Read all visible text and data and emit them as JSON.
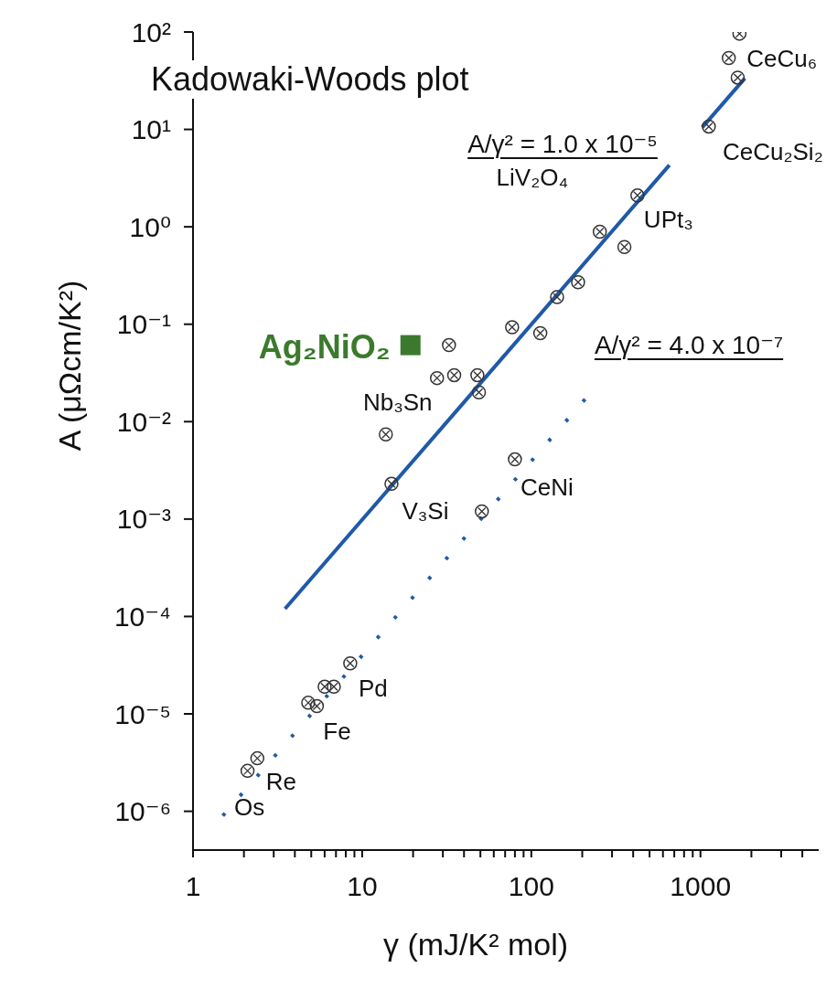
{
  "chart_data": {
    "type": "scatter",
    "title": "Kadowaki-Woods plot",
    "xlabel": "γ  (mJ/K² mol)",
    "ylabel": "A  (μΩcm/K²)",
    "log": "xy",
    "xlim": [
      1,
      5000
    ],
    "ylim": [
      4e-07,
      100
    ],
    "xticks": [
      1,
      {
        "value": 2,
        "label": null
      },
      {
        "value": 3,
        "label": null
      },
      {
        "value": 4,
        "label": null
      },
      {
        "value": 5,
        "label": null
      },
      {
        "value": 6,
        "label": null
      },
      {
        "value": 7,
        "label": null
      },
      {
        "value": 8,
        "label": null
      },
      {
        "value": 9,
        "label": null
      },
      10,
      {
        "value": 20,
        "label": null
      },
      {
        "value": 30,
        "label": null
      },
      {
        "value": 40,
        "label": null
      },
      {
        "value": 50,
        "label": null
      },
      {
        "value": 60,
        "label": null
      },
      {
        "value": 70,
        "label": null
      },
      {
        "value": 80,
        "label": null
      },
      {
        "value": 90,
        "label": null
      },
      100,
      {
        "value": 200,
        "label": null
      },
      {
        "value": 300,
        "label": null
      },
      {
        "value": 400,
        "label": null
      },
      {
        "value": 500,
        "label": null
      },
      {
        "value": 600,
        "label": null
      },
      {
        "value": 700,
        "label": null
      },
      {
        "value": 800,
        "label": null
      },
      {
        "value": 900,
        "label": null
      },
      1000,
      {
        "value": 2000,
        "label": null
      },
      {
        "value": 3000,
        "label": null
      },
      {
        "value": 4000,
        "label": null
      }
    ],
    "yticks": [
      {
        "value": 1e-06,
        "label": "10⁻⁶"
      },
      {
        "value": 1e-05,
        "label": "10⁻⁵"
      },
      {
        "value": 0.0001,
        "label": "10⁻⁴"
      },
      {
        "value": 0.001,
        "label": "10⁻³"
      },
      {
        "value": 0.01,
        "label": "10⁻²"
      },
      {
        "value": 0.1,
        "label": "10⁻¹"
      },
      {
        "value": 1,
        "label": "10⁰"
      },
      {
        "value": 10,
        "label": "10¹"
      },
      {
        "value": 100,
        "label": "10²"
      }
    ],
    "series": [
      {
        "color": "#333333",
        "marker": "circle",
        "x": [
          1470,
          1700,
          1660,
          1120,
          424,
          254,
          355,
          189,
          142,
          77,
          113,
          32.6,
          27.7,
          35,
          48,
          49,
          13.8,
          14.9,
          80,
          51,
          8.5,
          6.0,
          6.8,
          4.8,
          5.4,
          2.4,
          2.1
        ],
        "values": [
          54,
          96,
          34,
          10.7,
          2.1,
          0.89,
          0.62,
          0.27,
          0.19,
          0.093,
          0.081,
          0.061,
          0.028,
          0.03,
          0.03,
          0.02,
          0.0074,
          0.0023,
          0.0041,
          0.0012,
          3.3e-05,
          1.9e-05,
          1.9e-05,
          1.3e-05,
          1.2e-05,
          3.5e-06,
          2.6e-06
        ]
      },
      {
        "name": "Ag₂NiO₂",
        "color": "#3b7a2c",
        "marker": "square",
        "x": [
          19.3
        ],
        "values": [
          0.061
        ]
      },
      {
        "type": "line",
        "color": "#1f5aa8",
        "line_style": "solid",
        "marker": "none",
        "x": [
          3.5,
          655,
          820,
          1025,
          1830
        ],
        "values": [
          0.00012,
          4.3,
          null,
          10.5,
          33.5
        ]
      },
      {
        "type": "line",
        "color": "#1f5aa8",
        "line_style": "dotted",
        "marker": "none",
        "x": [
          1.5,
          208
        ],
        "values": [
          9e-07,
          0.017
        ]
      }
    ],
    "annotations": [
      {
        "text": "CeCu₆",
        "x": 1470,
        "y": 54
      },
      {
        "text": "CeCu₂Si₂",
        "x": 1120,
        "y": 10.7
      },
      {
        "text": "LiV₂O₄",
        "x": 424,
        "y": 2.1
      },
      {
        "text": "UPt₃",
        "x": 424,
        "y": 2.1
      },
      {
        "text": "Nb₃Sn",
        "x": 13.8,
        "y": 0.0074
      },
      {
        "text": "V₃Si",
        "x": 14.9,
        "y": 0.0023
      },
      {
        "text": "CeNi",
        "x": 80,
        "y": 0.0041
      },
      {
        "text": "Pd",
        "x": 8.5,
        "y": 3.3e-05
      },
      {
        "text": "Fe",
        "x": 5.4,
        "y": 1.2e-05
      },
      {
        "text": "Re",
        "x": 2.4,
        "y": 3.5e-06
      },
      {
        "text": "Os",
        "x": 2.1,
        "y": 2.6e-06
      },
      "A/γ² = 1.0 x 10⁻⁵",
      "A/γ² = 4.0 x 10⁻⁷"
    ]
  }
}
